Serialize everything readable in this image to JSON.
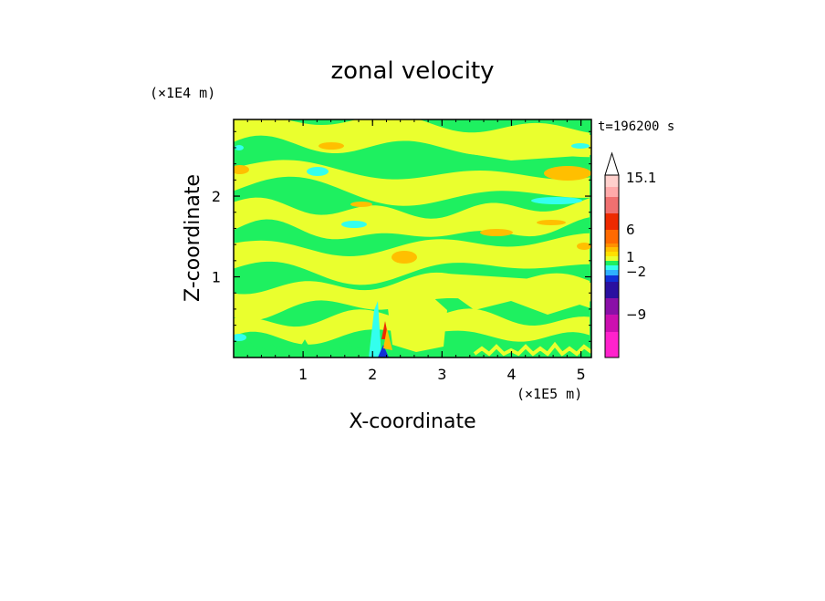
{
  "chart_data": {
    "type": "heatmap",
    "title": "zonal velocity",
    "xlabel": "X-coordinate",
    "ylabel": "Z-coordinate",
    "x_scale_label": "(×1E5 m)",
    "y_scale_label": "(×1E4 m)",
    "time_label": "t=196200 s",
    "xlim": [
      0,
      5.15
    ],
    "ylim": [
      0,
      2.95
    ],
    "x_ticks": [
      "1",
      "2",
      "3",
      "4",
      "5"
    ],
    "y_ticks": [
      "1",
      "2"
    ],
    "grid": false,
    "colorbar": {
      "labels": [
        "15.1",
        "6",
        "1",
        "−2",
        "−9"
      ],
      "levels": [
        {
          "color": "#ff22cc"
        },
        {
          "color": "#cc10b0"
        },
        {
          "color": "#8a10a8"
        },
        {
          "color": "#2a10a0"
        },
        {
          "color": "#1030d8"
        },
        {
          "color": "#2eb0ff"
        },
        {
          "color": "#33ffee"
        },
        {
          "color": "#1ef060"
        },
        {
          "color": "#eaff2e"
        },
        {
          "color": "#ffe000"
        },
        {
          "color": "#ffbf00"
        },
        {
          "color": "#ff9000"
        },
        {
          "color": "#ff6a00"
        },
        {
          "color": "#ee2a00"
        },
        {
          "color": "#f07070"
        },
        {
          "color": "#ffaaaa"
        },
        {
          "color": "#ffd0cc"
        }
      ]
    },
    "field": {
      "dominant_colors": [
        "#1ef060",
        "#eaff2e"
      ],
      "accent_colors": [
        "#ffbf00",
        "#33ffee",
        "#2eb0ff",
        "#1030d8",
        "#ee2a00"
      ]
    }
  }
}
